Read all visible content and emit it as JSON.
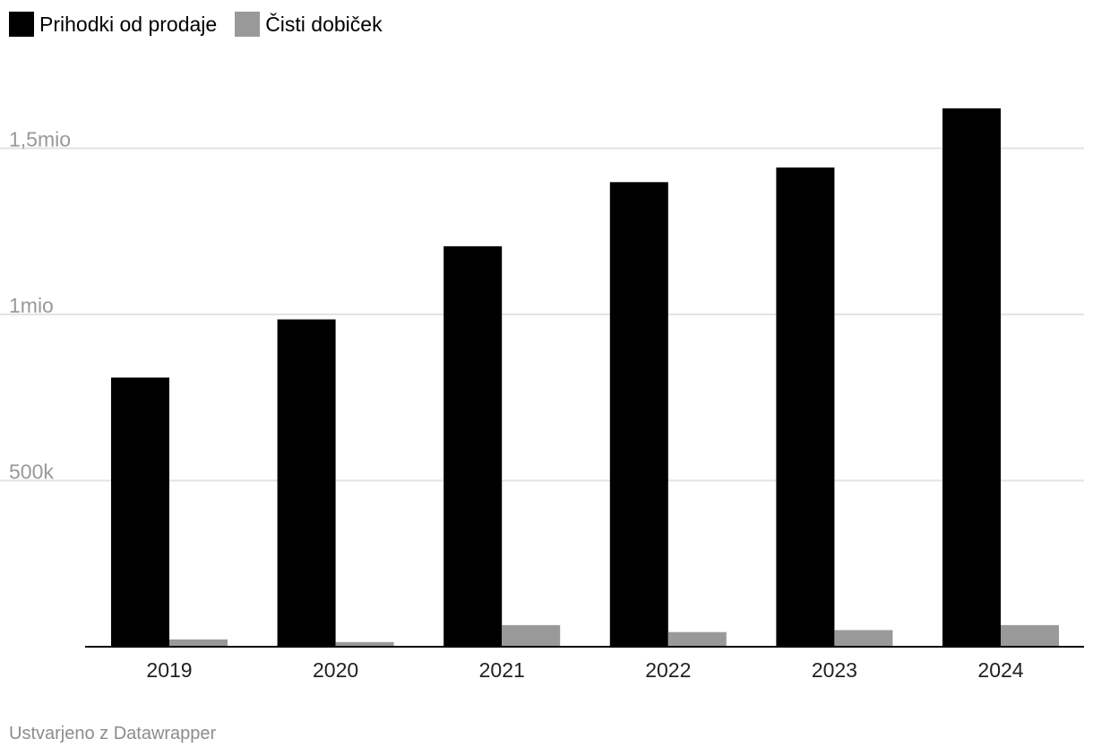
{
  "chart_data": {
    "type": "bar",
    "categories": [
      "2019",
      "2020",
      "2021",
      "2022",
      "2023",
      "2024"
    ],
    "series": [
      {
        "name": "Prihodki od prodaje",
        "color": "#000000",
        "values": [
          810000,
          985000,
          1205000,
          1398000,
          1442000,
          1620000
        ]
      },
      {
        "name": "Čisti dobiček",
        "color": "#999999",
        "values": [
          22000,
          14000,
          65000,
          44000,
          50000,
          65000
        ]
      }
    ],
    "yticks": [
      {
        "value": 500000,
        "label": "500k"
      },
      {
        "value": 1000000,
        "label": "1mio"
      },
      {
        "value": 1500000,
        "label": "1,5mio"
      }
    ],
    "ylim": [
      0,
      1750000
    ],
    "grid": true,
    "legend_position": "top-left"
  },
  "footer": {
    "credit": "Ustvarjeno z Datawrapper"
  },
  "colors": {
    "grid": "#e3e3e3",
    "tick_label": "#999999",
    "axis": "#000000"
  }
}
